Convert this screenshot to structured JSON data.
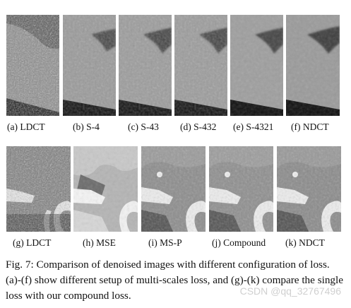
{
  "figure": {
    "row1_labels": [
      "(a) LDCT",
      "(b) S-4",
      "(c) S-43",
      "(d) S-432",
      "(e) S-4321",
      "(f) NDCT"
    ],
    "row2_labels": [
      "(g) LDCT",
      "(h) MSE",
      "(i) MS-P",
      "(j) Compound",
      "(k) NDCT"
    ],
    "caption": "Fig. 7: Comparison of denoised images with different configuration of loss. (a)-(f) show different setup of multi-scales loss, and (g)-(k) compare the single loss with our compound loss.",
    "watermark": "CSDN @qq_32767496"
  }
}
